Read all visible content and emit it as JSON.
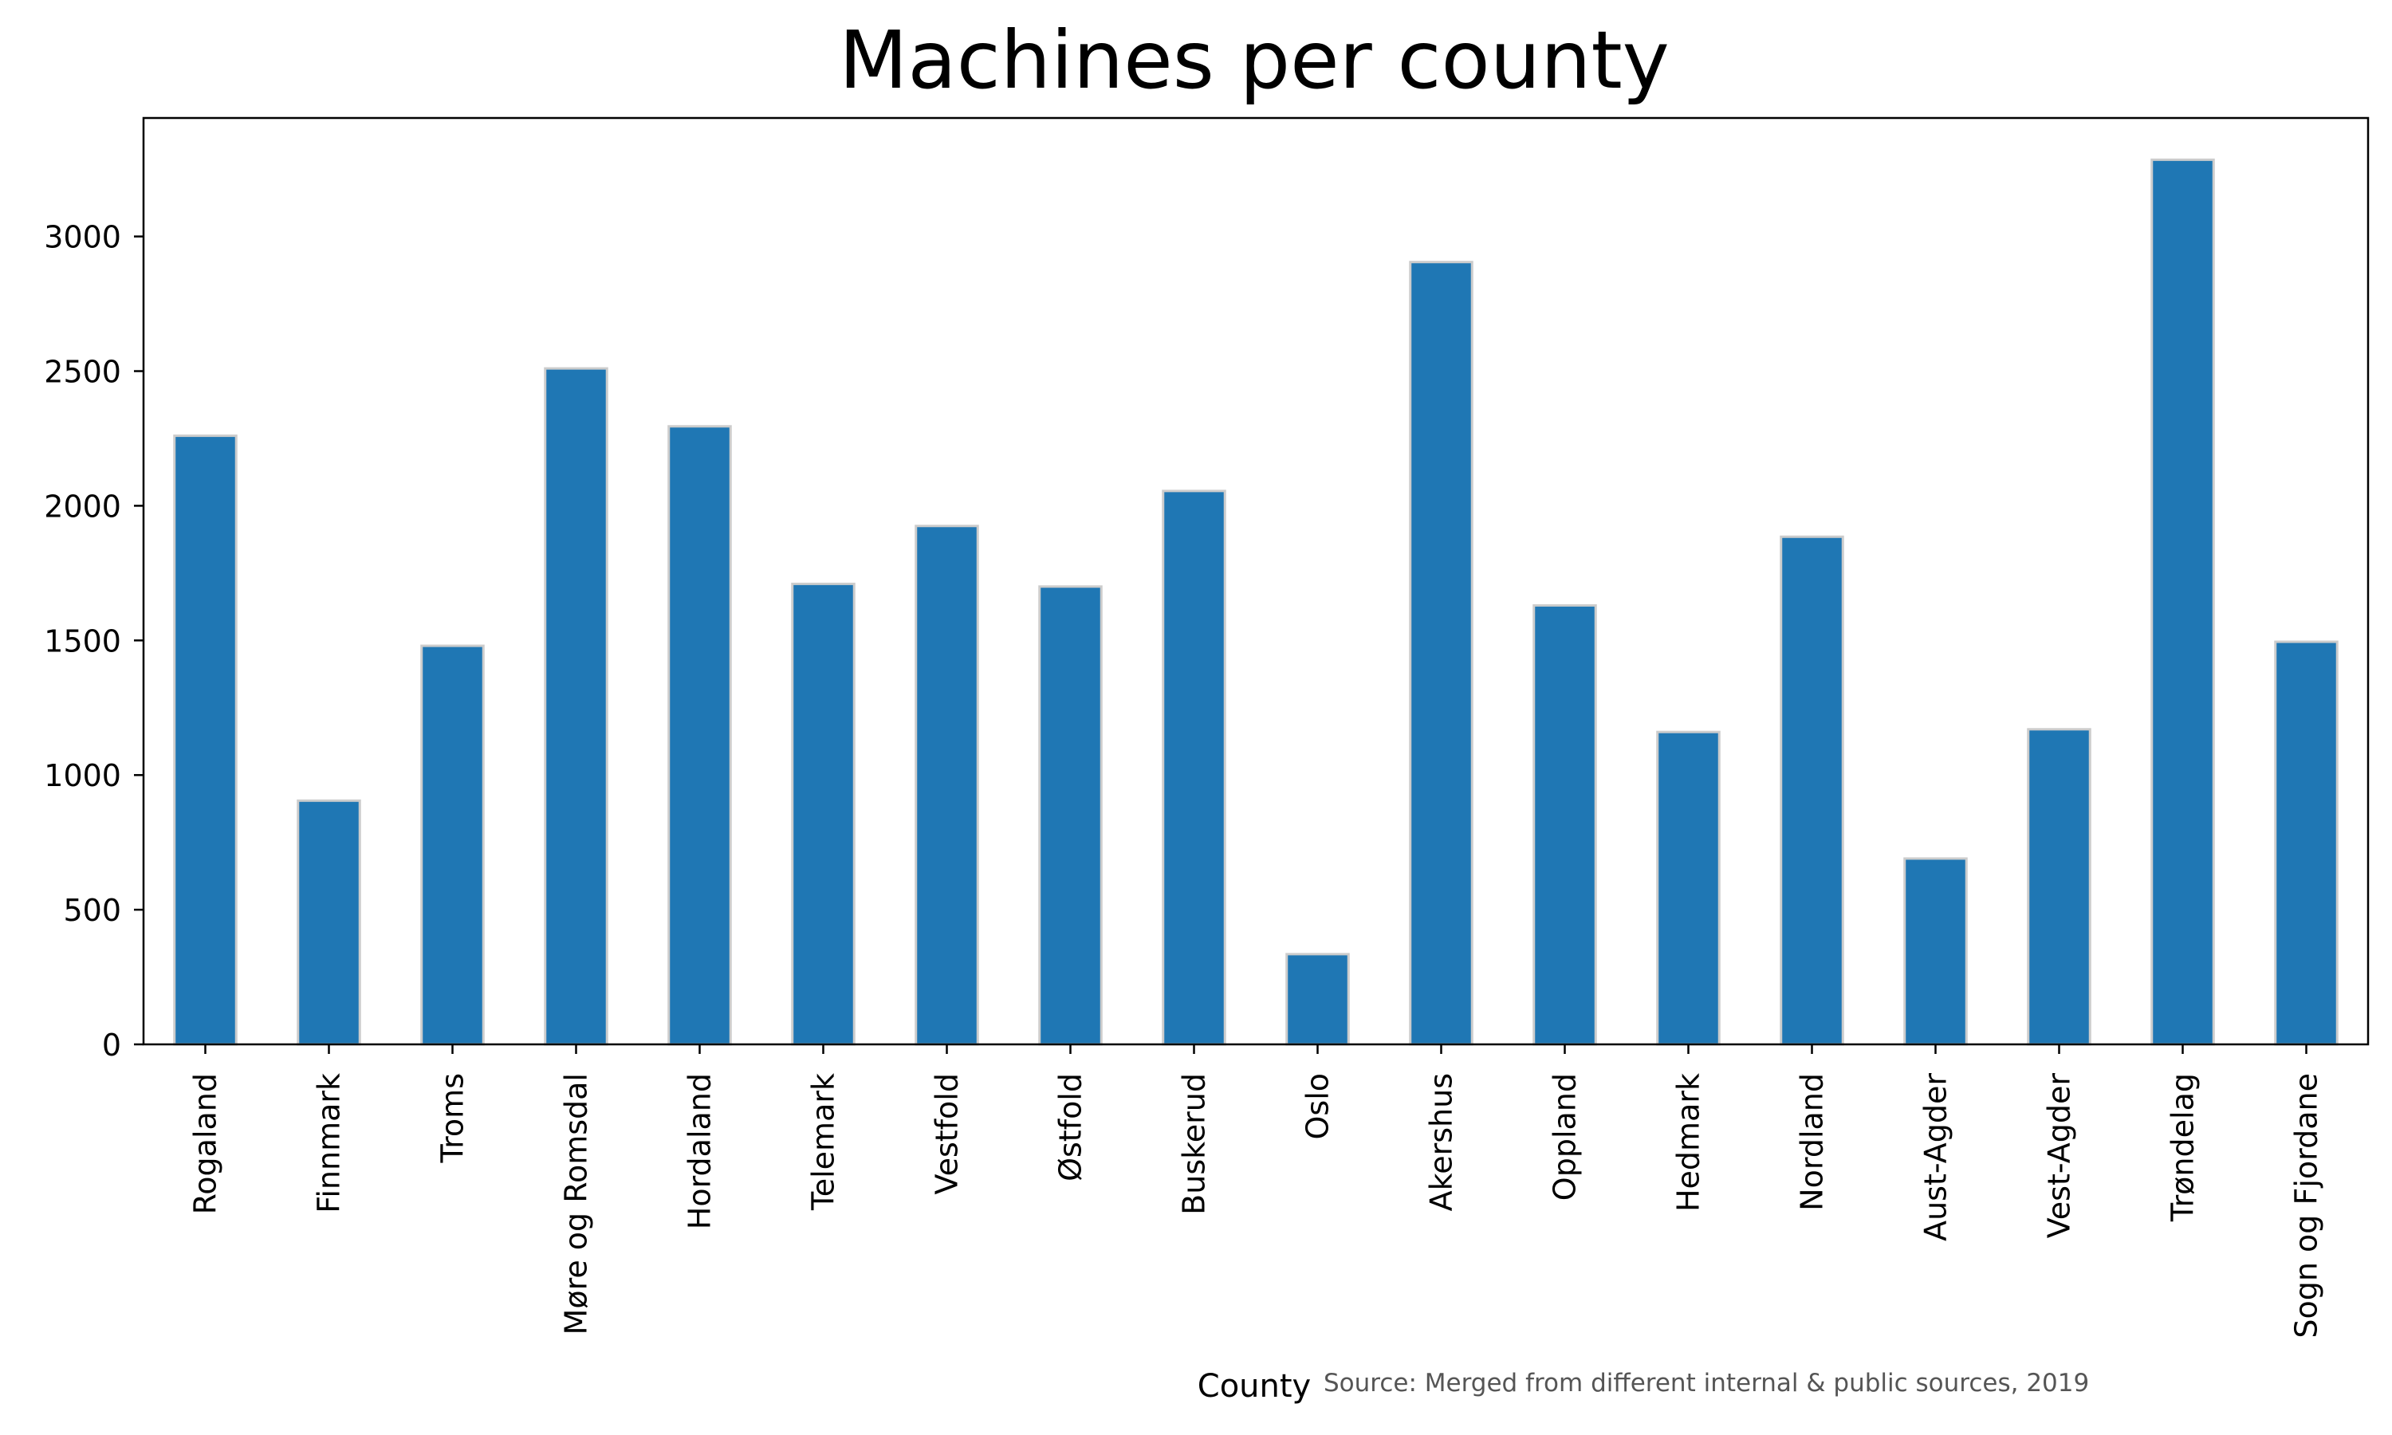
{
  "chart_data": {
    "type": "bar",
    "title": "Machines per county",
    "xlabel": "County",
    "ylabel": "",
    "ylim": [
      0,
      3440
    ],
    "yticks": [
      0,
      500,
      1000,
      1500,
      2000,
      2500,
      3000
    ],
    "grid": false,
    "categories": [
      "Rogaland",
      "Finnmark",
      "Troms",
      "Møre og Romsdal",
      "Hordaland",
      "Telemark",
      "Vestfold",
      "Østfold",
      "Buskerud",
      "Oslo",
      "Akershus",
      "Oppland",
      "Hedmark",
      "Nordland",
      "Aust-Agder",
      "Vest-Agder",
      "Trøndelag",
      "Sogn og Fjordane"
    ],
    "values": [
      2260,
      905,
      1480,
      2510,
      2295,
      1710,
      1925,
      1700,
      2055,
      335,
      2905,
      1630,
      1160,
      1885,
      690,
      1170,
      3285,
      1495
    ],
    "bar_color": "#1f77b4",
    "bar_edge_color": "#cccccc"
  },
  "source_note": "Source: Merged from different internal & public sources, 2019"
}
